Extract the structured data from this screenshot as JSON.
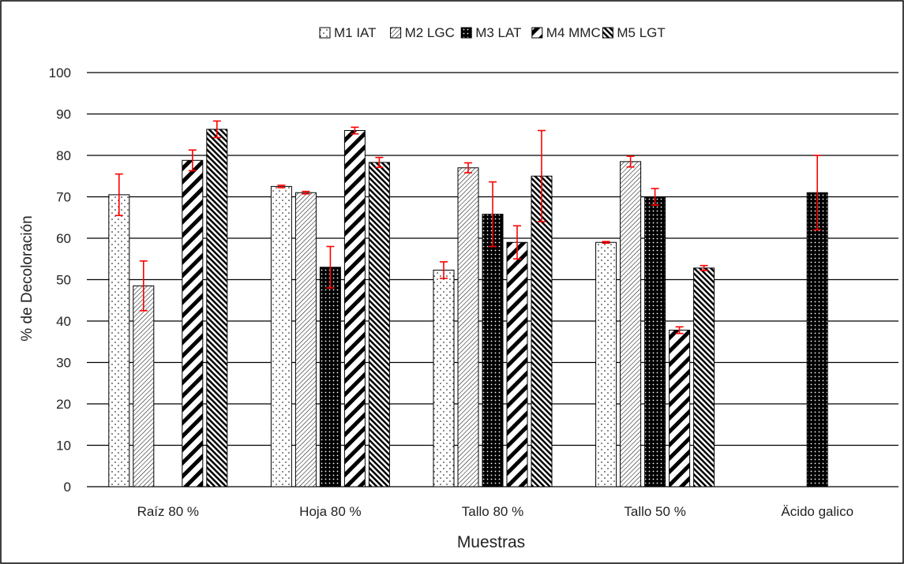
{
  "chart_data": {
    "type": "bar",
    "xlabel": "Muestras",
    "ylabel": "% de Decoloración",
    "ylim": [
      0,
      100
    ],
    "yticks": [
      0,
      10,
      20,
      30,
      40,
      50,
      60,
      70,
      80,
      90,
      100
    ],
    "grid": true,
    "legend_position": "top",
    "categories": [
      "Raíz 80 %",
      "Hoja 80 %",
      "Tallo 80 %",
      "Tallo 50 %",
      "Äcido galico"
    ],
    "series": [
      {
        "name": "M1 IAT",
        "pattern": "dots-sparse",
        "values": [
          70.5,
          72.5,
          52.3,
          59.0,
          null
        ],
        "errors": [
          5.0,
          0.3,
          2.0,
          0.2,
          null
        ]
      },
      {
        "name": "M2 LGC",
        "pattern": "diag-fine",
        "values": [
          48.5,
          71.0,
          77.0,
          78.5,
          null
        ],
        "errors": [
          6.0,
          0.3,
          1.2,
          1.3,
          null
        ]
      },
      {
        "name": "M3 LAT",
        "pattern": "dots-dense-dark",
        "values": [
          null,
          53.0,
          65.8,
          70.0,
          71.0
        ],
        "errors": [
          null,
          5.0,
          7.8,
          2.0,
          9.0
        ]
      },
      {
        "name": "M4 MMC",
        "pattern": "diag-wide",
        "values": [
          78.8,
          86.0,
          59.0,
          37.8,
          null
        ],
        "errors": [
          2.5,
          0.8,
          4.0,
          0.8,
          null
        ]
      },
      {
        "name": "M5 LGT",
        "pattern": "diag-dense",
        "values": [
          86.3,
          78.3,
          75.0,
          52.8,
          null
        ],
        "errors": [
          2.0,
          1.2,
          11.0,
          0.6,
          null
        ]
      }
    ],
    "error_color": "#ff0000",
    "grid_color": "#000000"
  }
}
